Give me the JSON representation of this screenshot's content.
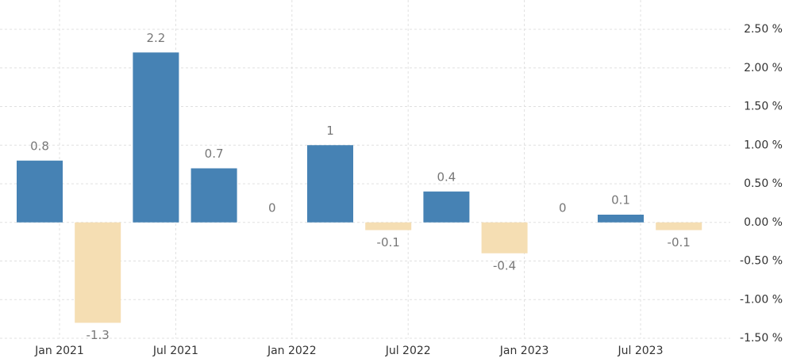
{
  "chart_data": {
    "type": "bar",
    "categories": [
      "Jan 2021",
      null,
      "Jul 2021",
      null,
      "Jan 2022",
      null,
      "Jul 2022",
      null,
      "Jan 2023",
      null,
      "Jul 2023",
      null
    ],
    "values": [
      0.8,
      -1.3,
      2.2,
      0.7,
      0,
      1,
      -0.1,
      0.4,
      -0.4,
      0,
      0.1,
      -0.1
    ],
    "positive_color": "#4682b4",
    "negative_color": "#f5deb3",
    "ylim": [
      -1.5,
      2.5
    ],
    "yticks": [
      {
        "value": -1.5,
        "label": "-1.50 %"
      },
      {
        "value": -1,
        "label": "-1.00 %"
      },
      {
        "value": -0.5,
        "label": "-0.50 %"
      },
      {
        "value": 0,
        "label": "0.00 %"
      },
      {
        "value": 0.5,
        "label": "0.50 %"
      },
      {
        "value": 1,
        "label": "1.00 %"
      },
      {
        "value": 1.5,
        "label": "1.50 %"
      },
      {
        "value": 2,
        "label": "2.00 %"
      },
      {
        "value": 2.5,
        "label": "2.50 %"
      }
    ],
    "grid": true
  }
}
